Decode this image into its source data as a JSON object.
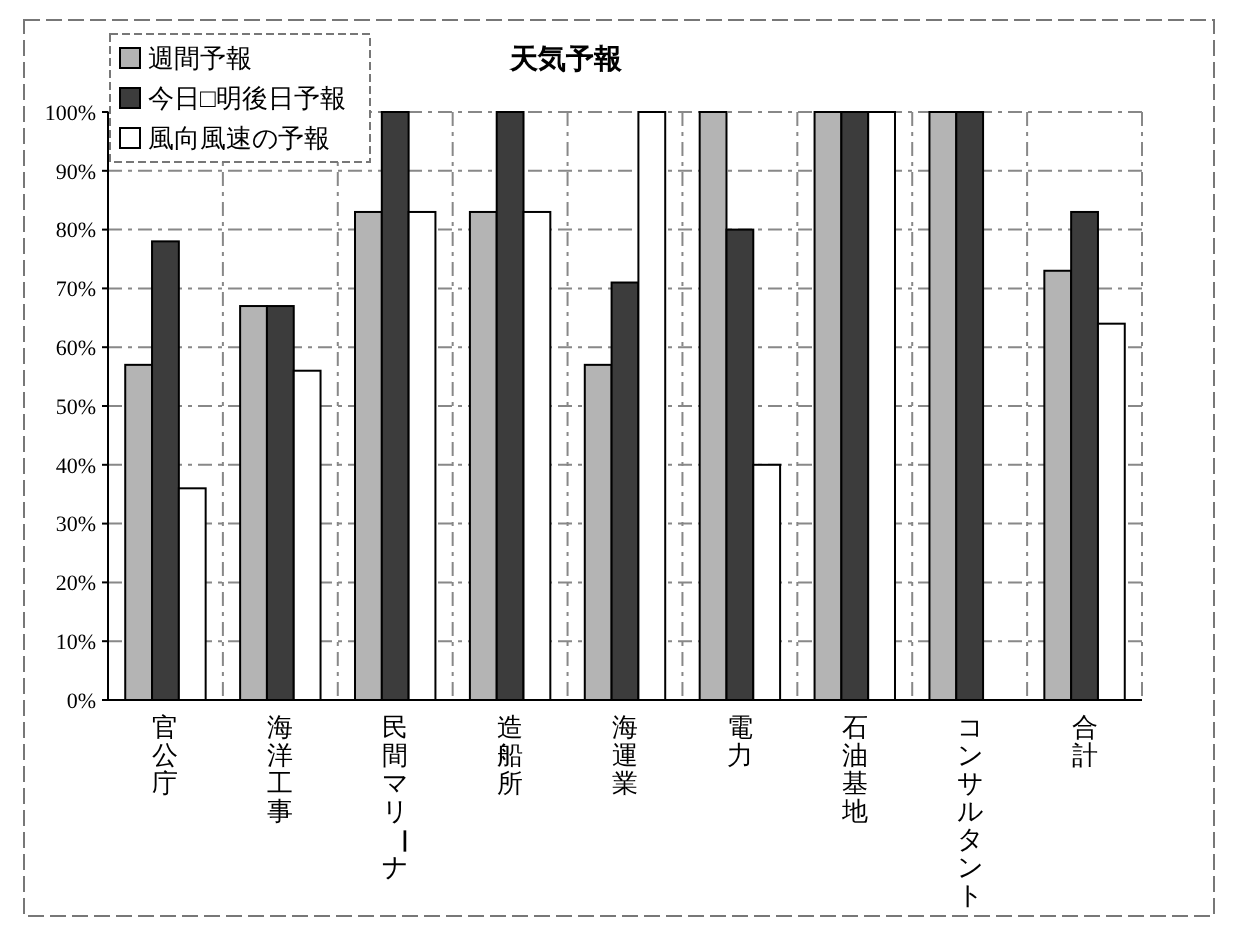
{
  "chart_data": {
    "type": "bar",
    "title": "天気予報",
    "categories": [
      "官公庁",
      "海洋工事",
      "民間マリーナ",
      "造船所",
      "海運業",
      "電力",
      "石油基地",
      "コンサルタント",
      "合計"
    ],
    "series": [
      {
        "name": "週間予報",
        "color": "#b4b4b4",
        "values": [
          57,
          67,
          83,
          83,
          57,
          100,
          100,
          100,
          73
        ]
      },
      {
        "name": "今日□明後日予報",
        "color": "#3c3c3c",
        "values": [
          78,
          67,
          100,
          100,
          71,
          80,
          100,
          100,
          83
        ]
      },
      {
        "name": "風向風速の予報",
        "color": "#ffffff",
        "values": [
          36,
          56,
          83,
          83,
          100,
          40,
          100,
          null,
          64
        ]
      }
    ],
    "ylim": [
      0,
      100
    ],
    "yticks": [
      {
        "value": 0,
        "label": "0%"
      },
      {
        "value": 10,
        "label": "10%"
      },
      {
        "value": 20,
        "label": "20%"
      },
      {
        "value": 30,
        "label": "30%"
      },
      {
        "value": 40,
        "label": "40%"
      },
      {
        "value": 50,
        "label": "50%"
      },
      {
        "value": 60,
        "label": "60%"
      },
      {
        "value": 70,
        "label": "70%"
      },
      {
        "value": 80,
        "label": "80%"
      },
      {
        "value": 90,
        "label": "90%"
      },
      {
        "value": 100,
        "label": "100%"
      }
    ],
    "grid": true,
    "legend": "top left"
  }
}
